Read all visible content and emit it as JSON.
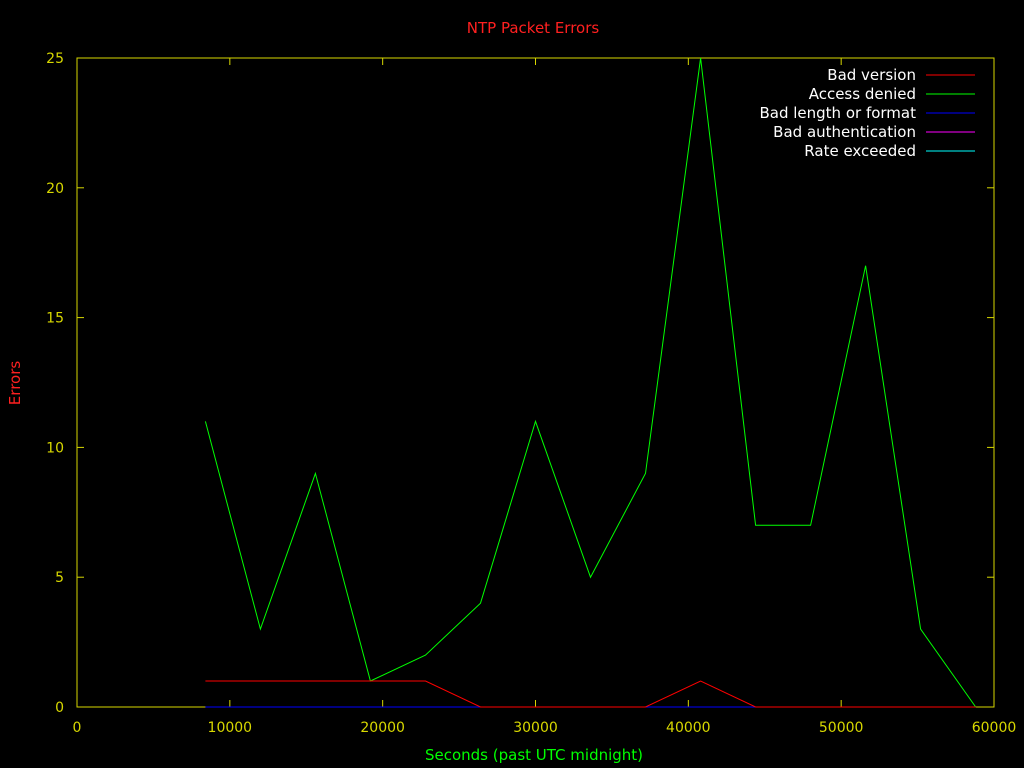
{
  "chart_data": {
    "type": "line",
    "title": "NTP Packet Errors",
    "xlabel": "Seconds (past UTC midnight)",
    "ylabel": "Errors",
    "xlim": [
      0,
      60000
    ],
    "ylim": [
      0,
      25
    ],
    "x_ticks": [
      0,
      10000,
      20000,
      30000,
      40000,
      50000,
      60000
    ],
    "y_ticks": [
      0,
      5,
      10,
      15,
      20,
      25
    ],
    "grid": false,
    "legend_position": "top-right",
    "colors": {
      "background": "#000000",
      "axes": "#d8d800",
      "title": "#ff2020",
      "ylabel": "#ff2020",
      "xlabel": "#00ff00",
      "legend_text": "#ffffff"
    },
    "series": [
      {
        "name": "Bad version",
        "color": "#ff0000",
        "x": [
          8400,
          12000,
          15600,
          19200,
          22800,
          26400,
          30000,
          33600,
          37200,
          40800,
          44400,
          48000,
          51600,
          55200,
          58800
        ],
        "y": [
          1,
          1,
          1,
          1,
          1,
          0,
          0,
          0,
          0,
          1,
          0,
          0,
          0,
          0,
          0
        ]
      },
      {
        "name": "Access denied",
        "color": "#00ff00",
        "x": [
          8400,
          12000,
          15600,
          19200,
          22800,
          26400,
          30000,
          33600,
          37200,
          40800,
          44400,
          48000,
          51600,
          55200,
          58800
        ],
        "y": [
          11,
          3,
          9,
          1,
          2,
          4,
          11,
          5,
          9,
          25,
          7,
          7,
          17,
          3,
          0
        ]
      },
      {
        "name": "Bad length or format",
        "color": "#0000ff",
        "x": [
          8400,
          12000,
          15600,
          19200,
          22800,
          26400,
          30000,
          33600,
          37200,
          40800,
          44400,
          48000,
          51600,
          55200,
          58800
        ],
        "y": [
          0,
          0,
          0,
          0,
          0,
          0,
          0,
          0,
          0,
          0,
          0,
          0,
          0,
          0,
          0
        ]
      },
      {
        "name": "Bad authentication",
        "color": "#ff00ff",
        "x": [
          8400,
          12000,
          15600,
          19200,
          22800,
          26400,
          30000,
          33600,
          37200,
          40800,
          44400,
          48000,
          51600,
          55200,
          58800
        ],
        "y": [
          0,
          0,
          0,
          0,
          0,
          0,
          0,
          0,
          0,
          0,
          0,
          0,
          0,
          0,
          0
        ]
      },
      {
        "name": "Rate exceeded",
        "color": "#00ffff",
        "x": [
          8400,
          12000,
          15600,
          19200,
          22800,
          26400,
          30000,
          33600,
          37200,
          40800,
          44400,
          48000,
          51600,
          55200,
          58800
        ],
        "y": [
          0,
          0,
          0,
          0,
          0,
          0,
          0,
          0,
          0,
          0,
          0,
          0,
          0,
          0,
          0
        ]
      }
    ]
  }
}
